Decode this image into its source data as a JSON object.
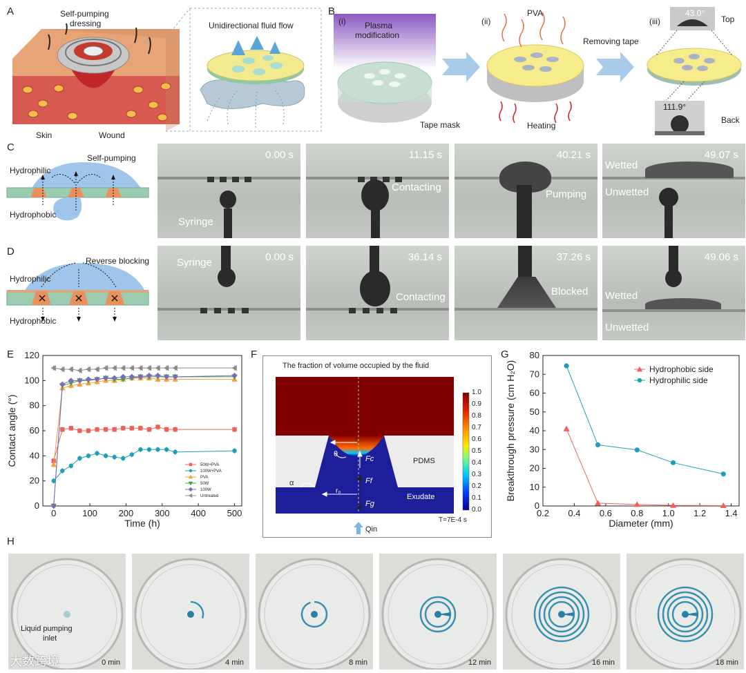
{
  "panel_labels": [
    "A",
    "B",
    "C",
    "D",
    "E",
    "F",
    "G",
    "H"
  ],
  "panel_a": {
    "dressing_label": "Self-pumping\ndressing",
    "dressing_line1": "Self-pumping",
    "dressing_line2": "dressing",
    "skin": "Skin",
    "wound": "Wound",
    "flow_title": "Unidirectional fluid flow"
  },
  "panel_b": {
    "step1": "(i)",
    "plasma1": "Plasma",
    "plasma2": "modification",
    "tape_mask": "Tape mask",
    "step2": "(ii)",
    "pva": "PVA",
    "heating": "Heating",
    "removing_tape": "Removing tape",
    "step3": "(iii)",
    "top_angle": "43.0°",
    "top": "Top",
    "back_angle": "111.9°",
    "back": "Back"
  },
  "panel_c": {
    "hydrophilic": "Hydrophilic",
    "hydrophobic": "Hydrophobic",
    "self_pumping": "Self-pumping",
    "frames": [
      {
        "time": "0.00 s",
        "label": "Syringe"
      },
      {
        "time": "11.15 s",
        "label": "Contacting"
      },
      {
        "time": "40.21 s",
        "label": "Pumping"
      },
      {
        "time": "49.07 s",
        "label_top": "Wetted",
        "label_bottom": "Unwetted"
      }
    ]
  },
  "panel_d": {
    "hydrophilic": "Hydrophilic",
    "hydrophobic": "Hydrophobic",
    "reverse_blocking": "Reverse blocking",
    "frames": [
      {
        "time": "0.00 s",
        "label": "Syringe"
      },
      {
        "time": "36.14 s",
        "label": "Contacting"
      },
      {
        "time": "37.26 s",
        "label": "Blocked"
      },
      {
        "time": "49.06 s",
        "label_top": "Wetted",
        "label_bottom": "Unwetted"
      }
    ]
  },
  "panel_f": {
    "title": "The fraction of volume occupied by the fluid",
    "r": "r",
    "theta": "θ",
    "alpha": "α",
    "r0": "r₀",
    "fc": "Fc",
    "ff": "Ff",
    "fg": "Fg",
    "pdms": "PDMS",
    "exudate": "Exudate",
    "time": "T=7E-4 s",
    "qin": "Qin",
    "colorbar_ticks": [
      "1.0",
      "0.9",
      "0.8",
      "0.7",
      "0.6",
      "0.5",
      "0.4",
      "0.3",
      "0.2",
      "0.1",
      "0.0"
    ]
  },
  "panel_h": {
    "inlet_line1": "Liquid pumping",
    "inlet_line2": "inlet",
    "watermark": "大数跨境",
    "times": [
      "0 min",
      "4 min",
      "8 min",
      "12 min",
      "16 min",
      "18 min"
    ],
    "ring_counts": [
      0,
      1,
      1,
      2,
      4,
      4
    ],
    "ring_arc_fractions": [
      0,
      0.3,
      0.95,
      1,
      1,
      1
    ]
  },
  "colors": {
    "hydrophobic": "#f0605a",
    "hydrophilic": "#1f9fb5",
    "pva": "#f2a13a",
    "w50": "#3aa63a",
    "w100": "#7b6bb8",
    "untreated": "#8a8a8a"
  },
  "chart_data": [
    {
      "panel": "E",
      "type": "scatter",
      "xlabel": "Time (h)",
      "ylabel": "Contact angle (°)",
      "xlim": [
        -30,
        520
      ],
      "ylim": [
        0,
        120
      ],
      "xticks": [
        0,
        100,
        200,
        300,
        400,
        500
      ],
      "yticks": [
        0,
        20,
        40,
        60,
        80,
        100,
        120
      ],
      "legend_position": "bottom-right",
      "series": [
        {
          "name": "50W+PVA",
          "marker": "square",
          "color": "#f0605a",
          "x": [
            0,
            24,
            48,
            72,
            96,
            120,
            144,
            168,
            192,
            216,
            240,
            264,
            288,
            312,
            336,
            500
          ],
          "y": [
            36,
            61,
            62,
            60,
            60,
            61,
            61,
            61,
            62,
            62,
            62,
            61,
            63,
            61,
            61,
            61
          ]
        },
        {
          "name": "100W+PVA",
          "marker": "circle",
          "color": "#1f9fb5",
          "x": [
            0,
            24,
            48,
            72,
            96,
            120,
            144,
            168,
            192,
            216,
            240,
            264,
            288,
            312,
            336,
            500
          ],
          "y": [
            20,
            28,
            32,
            38,
            40,
            42,
            40,
            39,
            38,
            41,
            45,
            45,
            45,
            45,
            43,
            44
          ]
        },
        {
          "name": "PVA",
          "marker": "triangle-up",
          "color": "#f2a13a",
          "x": [
            0,
            24,
            48,
            72,
            96,
            120,
            144,
            168,
            192,
            216,
            240,
            264,
            288,
            312,
            336,
            500
          ],
          "y": [
            33,
            94,
            96,
            97,
            98,
            99,
            100,
            100,
            101,
            102,
            102,
            102,
            101,
            101,
            101,
            101
          ]
        },
        {
          "name": "50W",
          "marker": "triangle-down",
          "color": "#3aa63a",
          "x": [
            0,
            24,
            48,
            72,
            96,
            120,
            144,
            168,
            192,
            216,
            240,
            264,
            288,
            312,
            336,
            500
          ],
          "y": [
            0,
            96,
            98,
            100,
            100,
            101,
            102,
            101,
            101,
            102,
            103,
            103,
            103,
            103,
            103,
            103
          ]
        },
        {
          "name": "100W",
          "marker": "diamond",
          "color": "#7b6bb8",
          "x": [
            0,
            24,
            48,
            72,
            96,
            120,
            144,
            168,
            192,
            216,
            240,
            264,
            288,
            312,
            336,
            500
          ],
          "y": [
            0,
            97,
            100,
            100,
            101,
            101,
            102,
            102,
            103,
            103,
            103,
            104,
            104,
            103,
            103,
            104
          ]
        },
        {
          "name": "Untreated",
          "marker": "triangle-left",
          "color": "#8a8a8a",
          "x": [
            0,
            24,
            48,
            72,
            96,
            120,
            144,
            168,
            192,
            216,
            240,
            264,
            288,
            312,
            336,
            500
          ],
          "y": [
            110,
            109,
            109,
            108,
            109,
            109,
            110,
            110,
            110,
            110,
            110,
            110,
            110,
            110,
            110,
            110
          ]
        }
      ]
    },
    {
      "panel": "G",
      "type": "line",
      "xlabel": "Diameter (mm)",
      "ylabel": "Breakthrough pressure (cm H₂O)",
      "xlim": [
        0.2,
        1.45
      ],
      "ylim": [
        0,
        80
      ],
      "xticks": [
        0.2,
        0.4,
        0.6,
        0.8,
        1.0,
        1.2,
        1.4
      ],
      "yticks": [
        0,
        10,
        20,
        30,
        40,
        50,
        60,
        70,
        80
      ],
      "legend_position": "top-right",
      "series": [
        {
          "name": "Hydrophobic side",
          "marker": "triangle-up",
          "color": "#f0605a",
          "x": [
            0.35,
            0.55,
            0.8,
            1.03,
            1.35
          ],
          "y": [
            41,
            1.5,
            0.8,
            0.3,
            0.2
          ]
        },
        {
          "name": "Hydrophilic side",
          "marker": "circle",
          "color": "#1f9fb5",
          "x": [
            0.35,
            0.55,
            0.8,
            1.03,
            1.35
          ],
          "y": [
            74.5,
            32.5,
            29.8,
            23,
            17
          ]
        }
      ]
    }
  ]
}
